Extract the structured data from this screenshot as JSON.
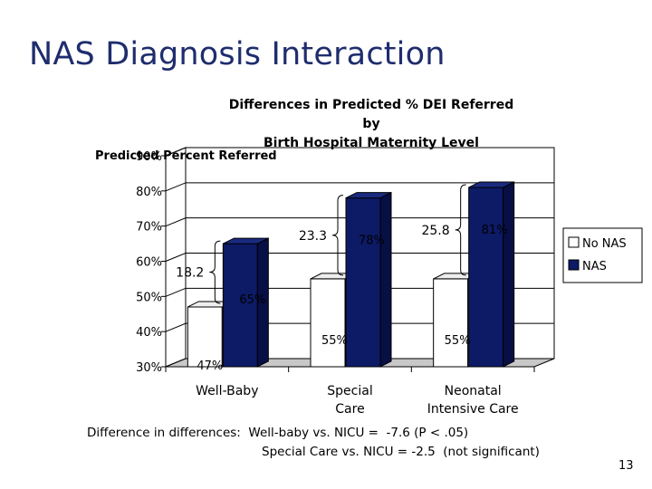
{
  "slide": {
    "title": "NAS Diagnosis Interaction",
    "page_number": "13",
    "footnote_line1": "Difference in differences:  Well-baby vs. NICU =  -7.6 (P < .05)",
    "footnote_line2": "Special Care vs. NICU = -2.5  (not significant)"
  },
  "colors": {
    "title": "#1f2d6e",
    "no_nas_bar": "#ffffff",
    "nas_bar": "#0d1a66",
    "nas_bar_side": "#070f45",
    "floor": "#c8c8c8"
  },
  "chart_data": {
    "type": "bar",
    "title_lines": [
      "Differences in Predicted % DEI Referred",
      "by",
      "Birth Hospital Maternity Level"
    ],
    "ylabel": "Predicted Percent Referred",
    "ylim": [
      30,
      90
    ],
    "yticks": [
      "30%",
      "40%",
      "50%",
      "60%",
      "70%",
      "80%",
      "90%"
    ],
    "categories": [
      [
        "Well-Baby"
      ],
      [
        "Special",
        "Care"
      ],
      [
        "Neonatal",
        "Intensive Care"
      ]
    ],
    "series": [
      {
        "name": "No NAS",
        "values": [
          47,
          55,
          55
        ],
        "labels": [
          "47%",
          "55%",
          "55%"
        ]
      },
      {
        "name": "NAS",
        "values": [
          65,
          78,
          81
        ],
        "labels": [
          "65%",
          "78%",
          "81%"
        ]
      }
    ],
    "differences": [
      "18.2",
      "23.3",
      "25.8"
    ],
    "legend_position": "right",
    "projection": "3d"
  }
}
